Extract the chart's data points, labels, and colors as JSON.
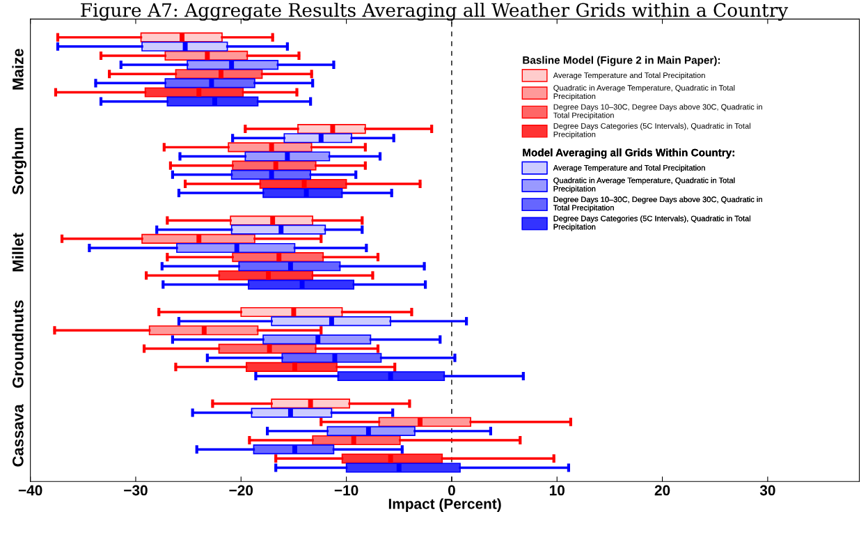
{
  "chart_data": {
    "type": "box",
    "orientation": "horizontal",
    "title": "Figure A7: Aggregate Results Averaging all Weather Grids within a Country",
    "xlabel": "Impact (Percent)",
    "categories": [
      "Maize",
      "Sorghum",
      "Millet",
      "Groundnuts",
      "Cassava"
    ],
    "xlim": [
      -40,
      38.7
    ],
    "xticks": [
      -40,
      -30,
      -20,
      -10,
      0,
      10,
      20,
      30
    ],
    "grid": false,
    "legend": "top right",
    "ref_lines": [
      {
        "axis": "x",
        "value": 0,
        "color": "#000000",
        "line_style": "dashed"
      }
    ],
    "annotations": [
      "Basline Model (Figure 2 in Main Paper):",
      "Model Averaging all Grids Within Country:"
    ],
    "series": [
      {
        "name": "Average Temperature and Total Precipitation",
        "color": "#ffcccc",
        "boxes": [
          {
            "low": -37.4,
            "q1": -29.5,
            "median": -25.6,
            "q3": -21.8,
            "high": -17.0
          },
          {
            "low": -19.6,
            "q1": -14.6,
            "median": -11.3,
            "q3": -8.2,
            "high": -1.9
          },
          {
            "low": -27.0,
            "q1": -21.0,
            "median": -17.0,
            "q3": -13.2,
            "high": -8.5
          },
          {
            "low": -27.8,
            "q1": -20.0,
            "median": -15.0,
            "q3": -10.4,
            "high": -3.8
          },
          {
            "low": -22.7,
            "q1": -17.1,
            "median": -13.4,
            "q3": -9.7,
            "high": -4.0
          }
        ]
      },
      {
        "name": "Quadratic in Average Temperature, Quadratic in Total\nPrecipitation",
        "color": "#ff9999",
        "boxes": [
          {
            "low": -33.3,
            "q1": -27.2,
            "median": -23.2,
            "q3": -19.4,
            "high": -14.5
          },
          {
            "low": -27.3,
            "q1": -21.2,
            "median": -17.1,
            "q3": -13.3,
            "high": -8.2
          },
          {
            "low": -37.0,
            "q1": -29.4,
            "median": -24.0,
            "q3": -18.7,
            "high": -12.4
          },
          {
            "low": -37.7,
            "q1": -28.7,
            "median": -23.5,
            "q3": -18.4,
            "high": -12.4
          },
          {
            "low": -12.4,
            "q1": -6.9,
            "median": -3.0,
            "q3": 1.8,
            "high": 11.3
          }
        ]
      },
      {
        "name": "Degree Days 10–30C, Degree Days above 30C, Quadratic in\nTotal Precipitation",
        "color": "#ff6666",
        "boxes": [
          {
            "low": -32.5,
            "q1": -26.2,
            "median": -21.9,
            "q3": -18.0,
            "high": -13.3
          },
          {
            "low": -26.7,
            "q1": -20.8,
            "median": -16.7,
            "q3": -12.9,
            "high": -8.2
          },
          {
            "low": -27.0,
            "q1": -20.8,
            "median": -16.4,
            "q3": -12.2,
            "high": -7.0
          },
          {
            "low": -29.2,
            "q1": -22.1,
            "median": -17.3,
            "q3": -12.9,
            "high": -7.0
          },
          {
            "low": -19.2,
            "q1": -13.2,
            "median": -9.3,
            "q3": -4.9,
            "high": 6.5
          }
        ]
      },
      {
        "name": "Degree Days Categories (5C Intervals), Quadratic in Total\nPrecipitation",
        "color": "#ff3333",
        "boxes": [
          {
            "low": -37.6,
            "q1": -29.1,
            "median": -24.0,
            "q3": -19.8,
            "high": -14.7
          },
          {
            "low": -25.3,
            "q1": -18.2,
            "median": -14.0,
            "q3": -10.0,
            "high": -3.0
          },
          {
            "low": -29.0,
            "q1": -22.1,
            "median": -17.4,
            "q3": -13.2,
            "high": -7.5
          },
          {
            "low": -26.2,
            "q1": -19.5,
            "median": -14.9,
            "q3": -10.9,
            "high": -5.4
          },
          {
            "low": -16.7,
            "q1": -10.4,
            "median": -5.8,
            "q3": -0.9,
            "high": 9.7
          }
        ]
      },
      {
        "name": "Average Temperature and Total Precipitation",
        "color": "#ccccff",
        "boxes": [
          {
            "low": -37.4,
            "q1": -29.4,
            "median": -25.3,
            "q3": -21.3,
            "high": -15.6
          },
          {
            "low": -20.8,
            "q1": -15.9,
            "median": -12.4,
            "q3": -9.5,
            "high": -5.5
          },
          {
            "low": -28.0,
            "q1": -20.9,
            "median": -16.2,
            "q3": -12.0,
            "high": -8.5
          },
          {
            "low": -25.9,
            "q1": -17.1,
            "median": -11.4,
            "q3": -5.8,
            "high": 1.4
          },
          {
            "low": -24.6,
            "q1": -19.0,
            "median": -15.3,
            "q3": -11.4,
            "high": -5.6
          }
        ]
      },
      {
        "name": "Quadratic in Average Temperature, Quadratic in Total\nPrecipitation",
        "color": "#9999ff",
        "boxes": [
          {
            "low": -31.4,
            "q1": -25.1,
            "median": -20.9,
            "q3": -16.5,
            "high": -11.2
          },
          {
            "low": -25.8,
            "q1": -19.6,
            "median": -15.6,
            "q3": -11.6,
            "high": -6.8
          },
          {
            "low": -34.4,
            "q1": -26.1,
            "median": -20.4,
            "q3": -14.9,
            "high": -8.1
          },
          {
            "low": -26.5,
            "q1": -17.9,
            "median": -12.7,
            "q3": -7.7,
            "high": -1.1
          },
          {
            "low": -17.5,
            "q1": -11.8,
            "median": -7.9,
            "q3": -3.5,
            "high": 3.7
          }
        ]
      },
      {
        "name": "Degree Days 10–30C, Degree Days above 30C, Quadratic in\nTotal Precipitation",
        "color": "#6666ff",
        "boxes": [
          {
            "low": -33.8,
            "q1": -27.2,
            "median": -22.8,
            "q3": -18.7,
            "high": -13.2
          },
          {
            "low": -26.5,
            "q1": -20.9,
            "median": -17.1,
            "q3": -13.4,
            "high": -9.1
          },
          {
            "low": -27.5,
            "q1": -20.2,
            "median": -15.3,
            "q3": -10.6,
            "high": -2.6
          },
          {
            "low": -23.2,
            "q1": -16.1,
            "median": -11.1,
            "q3": -6.7,
            "high": 0.3
          },
          {
            "low": -24.2,
            "q1": -18.8,
            "median": -14.9,
            "q3": -11.2,
            "high": -4.7
          }
        ]
      },
      {
        "name": "Degree Days Categories (5C Intervals), Quadratic in Total\nPrecipitation",
        "color": "#3333ff",
        "boxes": [
          {
            "low": -33.3,
            "q1": -27.0,
            "median": -22.5,
            "q3": -18.4,
            "high": -13.4
          },
          {
            "low": -25.9,
            "q1": -17.9,
            "median": -13.8,
            "q3": -10.4,
            "high": -5.7
          },
          {
            "low": -27.4,
            "q1": -19.3,
            "median": -14.2,
            "q3": -9.3,
            "high": -2.5
          },
          {
            "low": -18.6,
            "q1": -10.8,
            "median": -5.8,
            "q3": -0.7,
            "high": 6.8
          },
          {
            "low": -16.7,
            "q1": -10.0,
            "median": -5.0,
            "q3": 0.8,
            "high": 11.1
          }
        ]
      }
    ]
  }
}
